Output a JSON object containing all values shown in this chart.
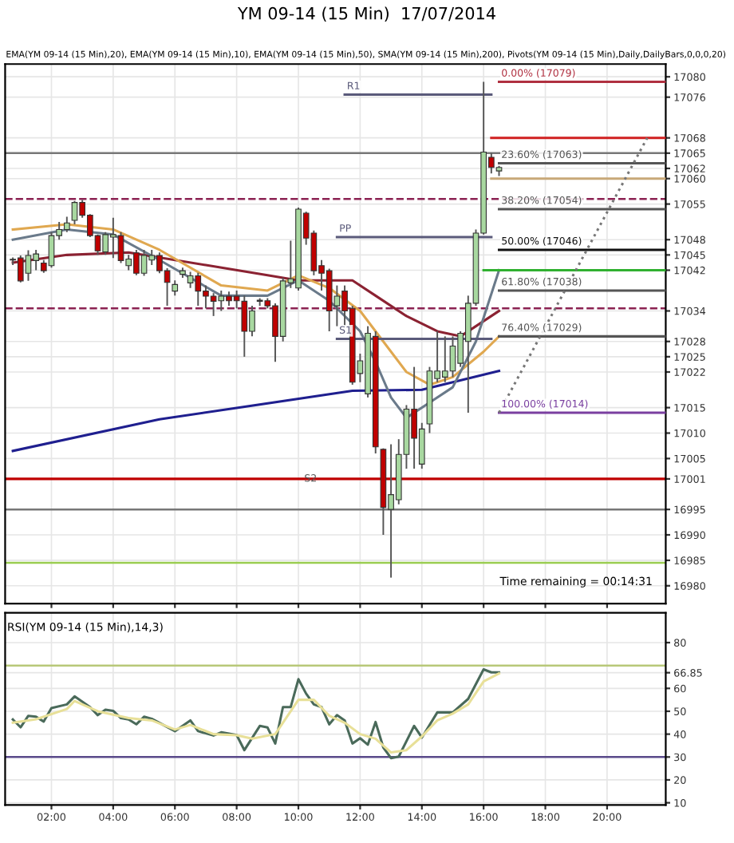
{
  "chart_data": [
    {
      "type": "candlestick",
      "title": "YM 09-14 (15 Min)  17/07/2014",
      "subtitle": "EMA(YM 09-14 (15 Min),20), EMA(YM 09-14 (15 Min),10), EMA(YM 09-14 (15 Min),50), SMA(YM 09-14 (15 Min),200), Pivots(YM 09-14 (15 Min),Daily,DailyBars,0,0,0,20)",
      "x": [
        0.75,
        1.0,
        1.25,
        1.5,
        1.75,
        2.0,
        2.25,
        2.5,
        2.75,
        3.0,
        3.25,
        3.5,
        3.75,
        4.0,
        4.25,
        4.5,
        4.75,
        5.0,
        5.25,
        5.5,
        5.75,
        6.0,
        6.25,
        6.5,
        6.75,
        7.0,
        7.25,
        7.5,
        7.75,
        8.0,
        8.25,
        8.5,
        8.75,
        9.0,
        9.25,
        9.5,
        9.75,
        10.0,
        10.25,
        10.5,
        10.75,
        11.0,
        11.25,
        11.5,
        11.75,
        12.0,
        12.25,
        12.5,
        12.75,
        13.0,
        13.25,
        13.5,
        13.75,
        14.0,
        14.25,
        14.5,
        14.75,
        15.0,
        15.25,
        15.5,
        15.75,
        16.0,
        16.25,
        16.5
      ],
      "ohlc": [
        [
          17044,
          17044.5,
          17043,
          17044
        ],
        [
          17044.4,
          17044.9,
          17039.6,
          17039.9
        ],
        [
          17041.4,
          17045.9,
          17039.9,
          17044.9
        ],
        [
          17043.9,
          17046,
          17042,
          17045.2
        ],
        [
          17043.4,
          17044,
          17041.5,
          17041.9
        ],
        [
          17042.9,
          17049.5,
          17042.5,
          17048.8
        ],
        [
          17048.8,
          17051.5,
          17048,
          17050
        ],
        [
          17050,
          17052.5,
          17049.5,
          17051.3
        ],
        [
          17051.8,
          17055.6,
          17051,
          17055.3
        ],
        [
          17055.3,
          17055.8,
          17052.3,
          17052.8
        ],
        [
          17052.8,
          17053,
          17048.5,
          17048.8
        ],
        [
          17048.8,
          17049,
          17045,
          17045.8
        ],
        [
          17045.6,
          17049.5,
          17045,
          17049
        ],
        [
          17048.5,
          17052.3,
          17044.4,
          17049
        ],
        [
          17048.8,
          17049.5,
          17043.4,
          17043.9
        ],
        [
          17042.9,
          17045,
          17042,
          17044.2
        ],
        [
          17045.4,
          17046,
          17041,
          17041.4
        ],
        [
          17041.4,
          17046,
          17040.9,
          17044.9
        ],
        [
          17044,
          17046,
          17043,
          17044.9
        ],
        [
          17044.9,
          17045.5,
          17041.4,
          17041.9
        ],
        [
          17041.9,
          17042.4,
          17035,
          17039.6
        ],
        [
          17037.9,
          17040,
          17037,
          17039.2
        ],
        [
          17041.2,
          17042.5,
          17040.5,
          17041.9
        ],
        [
          17039.5,
          17041.7,
          17038.5,
          17040.9
        ],
        [
          17040.9,
          17041.5,
          17035,
          17037.9
        ],
        [
          17037.9,
          17039,
          17034.5,
          17036.9
        ],
        [
          17036.9,
          17037.5,
          17033,
          17035.9
        ],
        [
          17036,
          17038,
          17034,
          17036.9
        ],
        [
          17036.9,
          17037.8,
          17035,
          17036
        ],
        [
          17036.9,
          17038,
          17034.5,
          17036
        ],
        [
          17035.9,
          17037,
          17025,
          17030
        ],
        [
          17030,
          17035,
          17029,
          17034
        ],
        [
          17035.9,
          17036.5,
          17035,
          17036.1
        ],
        [
          17036,
          17036.5,
          17034.5,
          17035
        ],
        [
          17035,
          17035.5,
          17024,
          17029
        ],
        [
          17029,
          17040.5,
          17028,
          17039.9
        ],
        [
          17039.5,
          17047.8,
          17038.5,
          17040.3
        ],
        [
          17038.5,
          17054.3,
          17038,
          17054
        ],
        [
          17053.2,
          17053.5,
          17047,
          17048.3
        ],
        [
          17049.3,
          17049.8,
          17041,
          17041.9
        ],
        [
          17042.9,
          17044,
          17038,
          17041.4
        ],
        [
          17041.9,
          17042.3,
          17030,
          17034
        ],
        [
          17035,
          17039,
          17031,
          17036.9
        ],
        [
          17037.9,
          17039,
          17031,
          17034
        ],
        [
          17034.5,
          17035,
          17019.5,
          17020
        ],
        [
          17021.7,
          17025.6,
          17020,
          17024.2
        ],
        [
          17017.7,
          17031,
          17017,
          17029.6
        ],
        [
          17029,
          17030,
          17006,
          17007.3
        ],
        [
          17006.8,
          17007,
          16990,
          16995.4
        ],
        [
          16995,
          17007.8,
          16981.6,
          16997.9
        ],
        [
          16996.9,
          17008.8,
          16996,
          17005.8
        ],
        [
          17005.8,
          17015.5,
          17003,
          17014.7
        ],
        [
          17014.7,
          17023,
          17003,
          17009
        ],
        [
          17003.9,
          17012,
          17003,
          17010.8
        ],
        [
          17011.8,
          17023,
          17010,
          17022.2
        ],
        [
          17020.7,
          17030,
          17020,
          17022.2
        ],
        [
          17021,
          17029,
          17020,
          17022.2
        ],
        [
          17022.2,
          17029,
          17021,
          17027.1
        ],
        [
          17023.7,
          17030,
          17023,
          17029.6
        ],
        [
          17028,
          17037,
          17014,
          17035.5
        ],
        [
          17035.5,
          17050,
          17035,
          17049.3
        ],
        [
          17049.3,
          17079,
          17049,
          17065.2
        ],
        [
          17064.2,
          17065,
          17061,
          17062.2
        ],
        [
          17061.5,
          17062.5,
          17060.5,
          17062.2
        ]
      ],
      "colors": [
        "#a8d8a0",
        "#c00000",
        "#a8d8a0",
        "#a8d8a0",
        "#c00000",
        "#a8d8a0",
        "#a8d8a0",
        "#a8d8a0",
        "#a8d8a0",
        "#c00000",
        "#c00000",
        "#c00000",
        "#a8d8a0",
        "#a8d8a0",
        "#c00000",
        "#a8d8a0",
        "#c00000",
        "#a8d8a0",
        "#a8d8a0",
        "#c00000",
        "#c00000",
        "#a8d8a0",
        "#a8d8a0",
        "#a8d8a0",
        "#c00000",
        "#c00000",
        "#c00000",
        "#a8d8a0",
        "#c00000",
        "#c00000",
        "#c00000",
        "#a8d8a0",
        "#a8d8a0",
        "#c00000",
        "#c00000",
        "#a8d8a0",
        "#a8d8a0",
        "#a8d8a0",
        "#c00000",
        "#c00000",
        "#c00000",
        "#c00000",
        "#a8d8a0",
        "#c00000",
        "#c00000",
        "#a8d8a0",
        "#a8d8a0",
        "#c00000",
        "#c00000",
        "#a8d8a0",
        "#a8d8a0",
        "#a8d8a0",
        "#c00000",
        "#a8d8a0",
        "#a8d8a0",
        "#a8d8a0",
        "#a8d8a0",
        "#a8d8a0",
        "#a8d8a0",
        "#a8d8a0",
        "#a8d8a0",
        "#a8d8a0",
        "#c00000",
        "#a8d8a0"
      ],
      "series": [
        {
          "type": "line",
          "color": "#1f1f8f",
          "x": [
            0.75,
            5.5,
            11.75,
            14,
            16.5
          ],
          "values": [
            17006.5,
            17012.7,
            17018.3,
            17018.5,
            17022.2
          ]
        },
        {
          "type": "line",
          "color": "#8b2232",
          "x": [
            0.75,
            2.5,
            4.5,
            7,
            9,
            10,
            11.75,
            12.5,
            13.5,
            14.5,
            15.25,
            16.5
          ],
          "values": [
            17043.5,
            17045,
            17045.5,
            17043,
            17041,
            17040,
            17040,
            17037,
            17033,
            17030,
            17029,
            17034
          ]
        },
        {
          "type": "line",
          "color": "#e0a850",
          "x": [
            0.75,
            2.5,
            4,
            5.5,
            7.5,
            9,
            10,
            11,
            12,
            12.5,
            13.5,
            14.25,
            15,
            16,
            16.5
          ],
          "values": [
            17050,
            17051,
            17050,
            17046,
            17039,
            17038,
            17041,
            17038.5,
            17034,
            17030,
            17022,
            17019.5,
            17021,
            17026,
            17029
          ]
        },
        {
          "type": "line",
          "color": "#6a7a8a",
          "x": [
            0.75,
            2.5,
            4,
            5.5,
            7.5,
            9,
            10,
            11,
            12,
            12.5,
            13,
            13.5,
            14.25,
            15,
            15.75,
            16.5
          ],
          "values": [
            17048,
            17050,
            17049,
            17044,
            17037,
            17037,
            17040,
            17036,
            17030,
            17024,
            17017,
            17013,
            17016,
            17019,
            17028,
            17042
          ]
        },
        {
          "type": "line",
          "name": "R1",
          "color": "#5a5a7a",
          "x": [
            11.5,
            16.25
          ],
          "values": [
            17076.5,
            17076.5
          ]
        },
        {
          "type": "line",
          "name": "PP",
          "color": "#5a5a7a",
          "x": [
            11.25,
            16.25
          ],
          "values": [
            17048.5,
            17048.5
          ]
        },
        {
          "type": "line",
          "name": "S1",
          "color": "#5a5a7a",
          "x": [
            11.25,
            16.25
          ],
          "values": [
            17028.5,
            17028.5
          ]
        },
        {
          "type": "line",
          "name": "0.00% (17079)",
          "color": "#b03040",
          "x": [
            16.5,
            21.9
          ],
          "values": [
            17079,
            17079
          ]
        },
        {
          "type": "line",
          "name": "23.60% (17063)",
          "color": "#555555",
          "x": [
            16.5,
            21.9
          ],
          "values": [
            17063,
            17063
          ]
        },
        {
          "type": "line",
          "name": "38.20% (17054)",
          "color": "#555555",
          "x": [
            16.5,
            21.9
          ],
          "values": [
            17054,
            17054
          ]
        },
        {
          "type": "line",
          "name": "50.00% (17046)",
          "color": "#111111",
          "x": [
            16.5,
            21.9
          ],
          "values": [
            17046,
            17046
          ]
        },
        {
          "type": "line",
          "name": "61.80% (17038)",
          "color": "#555555",
          "x": [
            16.5,
            21.9
          ],
          "values": [
            17038,
            17038
          ]
        },
        {
          "type": "line",
          "name": "76.40% (17029)",
          "color": "#555555",
          "x": [
            16.5,
            21.9
          ],
          "values": [
            17029,
            17029
          ]
        },
        {
          "type": "line",
          "name": "100.00% (17014)",
          "color": "#7a3fa0",
          "x": [
            16.5,
            21.9
          ],
          "values": [
            17014,
            17014
          ]
        },
        {
          "type": "line",
          "color": "#d02020",
          "x": [
            16.25,
            21.9
          ],
          "values": [
            17068,
            17068
          ]
        },
        {
          "type": "line",
          "color": "#30b030",
          "x": [
            16.0,
            21.9
          ],
          "values": [
            17042,
            17042
          ]
        },
        {
          "type": "line",
          "color": "#c8a878",
          "x": [
            16.25,
            21.9
          ],
          "values": [
            17060,
            17060
          ]
        },
        {
          "type": "line",
          "color": "#777777",
          "line_style": "dotted",
          "x": [
            16.5,
            21.3
          ],
          "values": [
            17014,
            17068
          ]
        }
      ],
      "xlim": [
        0.5,
        21.9
      ],
      "xticks": [
        {
          "value": 2,
          "label": null
        },
        {
          "value": 4,
          "label": null
        },
        {
          "value": 6,
          "label": null
        },
        {
          "value": 8,
          "label": null
        },
        {
          "value": 10,
          "label": null
        },
        {
          "value": 12,
          "label": null
        },
        {
          "value": 14,
          "label": null
        },
        {
          "value": 16,
          "label": null
        },
        {
          "value": 18,
          "label": null
        },
        {
          "value": 20,
          "label": null
        }
      ],
      "ylim": [
        16976.5,
        17082.5
      ],
      "yticks": [
        16980,
        16985,
        16990,
        16995,
        17001,
        17005,
        17010,
        17015,
        17022,
        17025,
        17028,
        17034,
        17042,
        17045,
        17048,
        17055,
        17060,
        17062,
        17065,
        17068,
        17076,
        17080
      ],
      "tick_labels": "y",
      "grid": true,
      "ref_lines": [
        {
          "axis": "y",
          "value": 17065,
          "color": "#777777"
        },
        {
          "axis": "y",
          "value": 17056,
          "color": "#8b2252",
          "line_style": "dashed"
        },
        {
          "axis": "y",
          "value": 17034.5,
          "color": "#8b2252",
          "line_style": "dashed"
        },
        {
          "axis": "y",
          "value": 17001,
          "color": "#c00000",
          "label": "S2"
        },
        {
          "axis": "y",
          "value": 16995,
          "color": "#777777"
        },
        {
          "axis": "y",
          "value": 16984.5,
          "color": "#9acd50"
        }
      ],
      "annotations": [
        "Time remaining = 00:14:31"
      ]
    },
    {
      "type": "line",
      "title": "RSI(YM 09-14 (15 Min),14,3)",
      "series": [
        {
          "color": "#4a6a5a",
          "x": [
            0.75,
            1.0,
            1.25,
            1.5,
            1.75,
            2.0,
            2.5,
            2.75,
            3.25,
            3.5,
            3.75,
            4.0,
            4.25,
            4.5,
            4.75,
            5.0,
            5.25,
            6.0,
            6.5,
            6.75,
            7.25,
            7.5,
            8.0,
            8.25,
            8.75,
            9.0,
            9.25,
            9.5,
            9.75,
            10.0,
            10.25,
            10.5,
            10.75,
            11.0,
            11.25,
            11.5,
            11.75,
            12.0,
            12.25,
            12.5,
            12.75,
            13.0,
            13.25,
            13.75,
            14.0,
            14.5,
            15.0,
            15.5,
            16.0,
            16.25,
            16.5
          ],
          "values": [
            46.4,
            43,
            48,
            47.6,
            45.5,
            51.4,
            53,
            56.5,
            51.8,
            48.3,
            50.7,
            50.2,
            47,
            46.4,
            44.3,
            47.6,
            46.7,
            41.3,
            46,
            41.3,
            39.4,
            40.8,
            39.6,
            33,
            43.6,
            42.9,
            35.9,
            51.8,
            51.8,
            64,
            57.7,
            53,
            51.8,
            44.3,
            48.3,
            46,
            35.9,
            38.2,
            35.4,
            45.3,
            34.2,
            29.5,
            30.2,
            43.6,
            38.5,
            49.5,
            49.5,
            55.4,
            68.3,
            67,
            67
          ]
        },
        {
          "color": "#e8e098",
          "x": [
            0.75,
            1.5,
            2.5,
            2.75,
            3.5,
            4.5,
            5.25,
            6,
            6.5,
            7.25,
            8,
            8.5,
            9.25,
            10,
            10.5,
            11,
            11.5,
            12,
            12.5,
            13,
            13.5,
            14,
            14.5,
            15,
            15.5,
            16,
            16.5
          ],
          "values": [
            45,
            46.5,
            51,
            54.5,
            50,
            47,
            46,
            42,
            44,
            40,
            39.5,
            38,
            40,
            55,
            55,
            48,
            45,
            40,
            38,
            32,
            33,
            39,
            46,
            49,
            53,
            63,
            66.5
          ]
        }
      ],
      "xlim": [
        0.5,
        21.9
      ],
      "xticks": [
        {
          "value": 2,
          "label": "02:00"
        },
        {
          "value": 4,
          "label": "04:00"
        },
        {
          "value": 6,
          "label": "06:00"
        },
        {
          "value": 8,
          "label": "08:00"
        },
        {
          "value": 10,
          "label": "10:00"
        },
        {
          "value": 12,
          "label": "12:00"
        },
        {
          "value": 14,
          "label": "14:00"
        },
        {
          "value": 16,
          "label": "16:00"
        },
        {
          "value": 18,
          "label": "18:00"
        },
        {
          "value": 20,
          "label": "20:00"
        }
      ],
      "ylim": [
        9,
        93
      ],
      "yticks": [
        10,
        20,
        30,
        40,
        50,
        60,
        66.85,
        80
      ],
      "grid": true,
      "ref_lines": [
        {
          "axis": "y",
          "value": 70,
          "color": "#b8c878"
        },
        {
          "axis": "y",
          "value": 30,
          "color": "#5a4a8a"
        }
      ]
    }
  ]
}
